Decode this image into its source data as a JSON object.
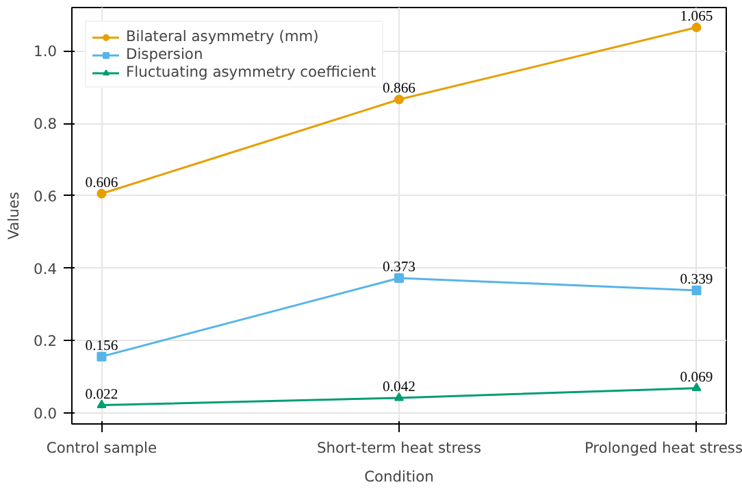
{
  "chart_data": {
    "type": "line",
    "xlabel": "Condition",
    "ylabel": "Values",
    "categories": [
      "Control sample",
      "Short-term heat stress",
      "Prolonged heat stress"
    ],
    "series": [
      {
        "name": "Bilateral asymmetry (mm)",
        "color": "#e69f00",
        "marker": "circle",
        "values": [
          0.606,
          0.866,
          1.065
        ]
      },
      {
        "name": "Dispersion",
        "color": "#56b4e9",
        "marker": "square",
        "values": [
          0.156,
          0.373,
          0.339
        ]
      },
      {
        "name": "Fluctuating asymmetry coefficient",
        "color": "#009e73",
        "marker": "triangle",
        "values": [
          0.022,
          0.042,
          0.069
        ]
      }
    ],
    "ylim": [
      -0.03,
      1.12
    ],
    "yticks": [
      {
        "value": 0,
        "label": "0.0"
      },
      {
        "value": 0.2,
        "label": "0.2"
      },
      {
        "value": 0.4,
        "label": "0.4"
      },
      {
        "value": 0.6,
        "label": "0.6"
      },
      {
        "value": 0.8,
        "label": "0.8"
      },
      {
        "value": 1.0,
        "label": "1.0"
      }
    ],
    "grid": true,
    "legend": "top left",
    "data_labels": true,
    "line_style": "solid"
  }
}
